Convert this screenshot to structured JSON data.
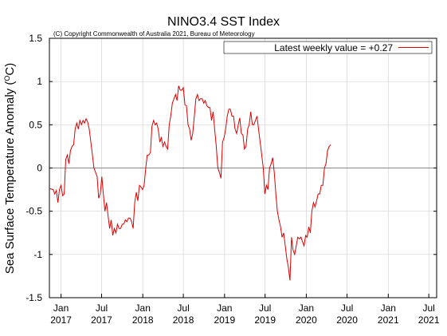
{
  "chart_data": {
    "type": "line",
    "title": "NINO3.4 SST Index",
    "subtitle": "(C) Copyright Commonwealth of Australia 2021, Bureau of Meteorology",
    "xlabel": "",
    "ylabel": "Sea Surface Temperature Anomaly (",
    "ylabel_unit": "O",
    "ylabel_tail": "C)",
    "ylim": [
      -1.5,
      1.5
    ],
    "yticks": [
      -1.5,
      -1,
      -0.5,
      0,
      0.5,
      1,
      1.5
    ],
    "ytick_labels": [
      "-1.5",
      "-1",
      "-0.5",
      "0",
      "0.5",
      "1",
      "1.5"
    ],
    "xlim": [
      "2016-11-10",
      "2021-08-05"
    ],
    "xticks": [
      {
        "date": "2017-01-01",
        "month": "Jan",
        "year": "2017"
      },
      {
        "date": "2017-07-01",
        "month": "Jul",
        "year": "2017"
      },
      {
        "date": "2018-01-01",
        "month": "Jan",
        "year": "2018"
      },
      {
        "date": "2018-07-01",
        "month": "Jul",
        "year": "2018"
      },
      {
        "date": "2019-01-01",
        "month": "Jan",
        "year": "2019"
      },
      {
        "date": "2019-07-01",
        "month": "Jul",
        "year": "2019"
      },
      {
        "date": "2020-01-01",
        "month": "Jan",
        "year": "2020"
      },
      {
        "date": "2020-07-01",
        "month": "Jul",
        "year": "2020"
      },
      {
        "date": "2021-01-01",
        "month": "Jan",
        "year": "2021"
      },
      {
        "date": "2021-07-01",
        "month": "Jul",
        "year": "2021"
      }
    ],
    "grid": true,
    "legend_position": "top-right",
    "series": [
      {
        "name": "Latest weekly value = +0.27",
        "color": "#dd0000",
        "points": [
          [
            "2016-11-13",
            -0.24
          ],
          [
            "2016-11-27",
            -0.25
          ],
          [
            "2016-12-04",
            -0.3
          ],
          [
            "2016-12-11",
            -0.26
          ],
          [
            "2016-12-18",
            -0.4
          ],
          [
            "2016-12-25",
            -0.25
          ],
          [
            "2017-01-01",
            -0.2
          ],
          [
            "2017-01-08",
            -0.32
          ],
          [
            "2017-01-15",
            -0.3
          ],
          [
            "2017-01-22",
            0.1
          ],
          [
            "2017-01-29",
            0.15
          ],
          [
            "2017-02-05",
            0.05
          ],
          [
            "2017-02-12",
            0.2
          ],
          [
            "2017-02-19",
            0.25
          ],
          [
            "2017-02-26",
            0.27
          ],
          [
            "2017-03-05",
            0.45
          ],
          [
            "2017-03-12",
            0.52
          ],
          [
            "2017-03-19",
            0.45
          ],
          [
            "2017-03-26",
            0.55
          ],
          [
            "2017-04-02",
            0.5
          ],
          [
            "2017-04-09",
            0.55
          ],
          [
            "2017-04-16",
            0.52
          ],
          [
            "2017-04-23",
            0.57
          ],
          [
            "2017-04-30",
            0.53
          ],
          [
            "2017-05-07",
            0.45
          ],
          [
            "2017-05-14",
            0.3
          ],
          [
            "2017-05-21",
            0.15
          ],
          [
            "2017-05-28",
            0.0
          ],
          [
            "2017-06-04",
            -0.05
          ],
          [
            "2017-06-11",
            -0.1
          ],
          [
            "2017-06-18",
            -0.35
          ],
          [
            "2017-06-25",
            -0.3
          ],
          [
            "2017-07-02",
            -0.1
          ],
          [
            "2017-07-09",
            -0.3
          ],
          [
            "2017-07-16",
            -0.5
          ],
          [
            "2017-07-23",
            -0.4
          ],
          [
            "2017-07-30",
            -0.55
          ],
          [
            "2017-08-06",
            -0.7
          ],
          [
            "2017-08-13",
            -0.6
          ],
          [
            "2017-08-20",
            -0.78
          ],
          [
            "2017-08-27",
            -0.7
          ],
          [
            "2017-09-03",
            -0.75
          ],
          [
            "2017-09-10",
            -0.65
          ],
          [
            "2017-09-17",
            -0.7
          ],
          [
            "2017-09-24",
            -0.7
          ],
          [
            "2017-10-01",
            -0.65
          ],
          [
            "2017-10-08",
            -0.65
          ],
          [
            "2017-10-15",
            -0.6
          ],
          [
            "2017-10-22",
            -0.62
          ],
          [
            "2017-10-29",
            -0.58
          ],
          [
            "2017-11-05",
            -0.58
          ],
          [
            "2017-11-12",
            -0.62
          ],
          [
            "2017-11-19",
            -0.7
          ],
          [
            "2017-11-26",
            -0.4
          ],
          [
            "2017-12-03",
            -0.28
          ],
          [
            "2017-12-10",
            -0.38
          ],
          [
            "2017-12-17",
            -0.2
          ],
          [
            "2017-12-24",
            -0.22
          ],
          [
            "2017-12-31",
            -0.25
          ],
          [
            "2018-01-07",
            -0.2
          ],
          [
            "2018-01-14",
            0.0
          ],
          [
            "2018-01-21",
            0.15
          ],
          [
            "2018-01-28",
            0.15
          ],
          [
            "2018-02-04",
            0.18
          ],
          [
            "2018-02-11",
            0.48
          ],
          [
            "2018-02-18",
            0.55
          ],
          [
            "2018-02-25",
            0.5
          ],
          [
            "2018-03-04",
            0.52
          ],
          [
            "2018-03-11",
            0.45
          ],
          [
            "2018-03-18",
            0.3
          ],
          [
            "2018-03-25",
            0.35
          ],
          [
            "2018-04-01",
            0.25
          ],
          [
            "2018-04-08",
            0.3
          ],
          [
            "2018-04-15",
            0.25
          ],
          [
            "2018-04-22",
            0.22
          ],
          [
            "2018-04-29",
            0.5
          ],
          [
            "2018-05-06",
            0.6
          ],
          [
            "2018-05-13",
            0.75
          ],
          [
            "2018-05-20",
            0.8
          ],
          [
            "2018-05-27",
            0.85
          ],
          [
            "2018-06-03",
            0.78
          ],
          [
            "2018-06-10",
            0.95
          ],
          [
            "2018-06-17",
            0.9
          ],
          [
            "2018-06-24",
            0.9
          ],
          [
            "2018-07-01",
            0.93
          ],
          [
            "2018-07-08",
            0.73
          ],
          [
            "2018-07-15",
            0.72
          ],
          [
            "2018-07-22",
            0.5
          ],
          [
            "2018-07-29",
            0.45
          ],
          [
            "2018-08-05",
            0.32
          ],
          [
            "2018-08-12",
            0.4
          ],
          [
            "2018-08-19",
            0.6
          ],
          [
            "2018-08-26",
            0.8
          ],
          [
            "2018-09-02",
            0.85
          ],
          [
            "2018-09-09",
            0.78
          ],
          [
            "2018-09-16",
            0.8
          ],
          [
            "2018-09-23",
            0.8
          ],
          [
            "2018-09-30",
            0.75
          ],
          [
            "2018-10-07",
            0.78
          ],
          [
            "2018-10-14",
            0.72
          ],
          [
            "2018-10-21",
            0.7
          ],
          [
            "2018-10-28",
            0.7
          ],
          [
            "2018-11-04",
            0.55
          ],
          [
            "2018-11-11",
            0.65
          ],
          [
            "2018-11-18",
            0.45
          ],
          [
            "2018-11-25",
            0.25
          ],
          [
            "2018-12-02",
            0.0
          ],
          [
            "2018-12-09",
            -0.05
          ],
          [
            "2018-12-16",
            -0.12
          ],
          [
            "2018-12-23",
            0.3
          ],
          [
            "2018-12-30",
            0.35
          ],
          [
            "2019-01-06",
            0.45
          ],
          [
            "2019-01-13",
            0.6
          ],
          [
            "2019-01-20",
            0.68
          ],
          [
            "2019-01-27",
            0.68
          ],
          [
            "2019-02-03",
            0.6
          ],
          [
            "2019-02-10",
            0.6
          ],
          [
            "2019-02-17",
            0.45
          ],
          [
            "2019-02-24",
            0.4
          ],
          [
            "2019-03-03",
            0.5
          ],
          [
            "2019-03-10",
            0.58
          ],
          [
            "2019-03-17",
            0.4
          ],
          [
            "2019-03-24",
            0.38
          ],
          [
            "2019-03-31",
            0.22
          ],
          [
            "2019-04-07",
            0.25
          ],
          [
            "2019-04-14",
            0.45
          ],
          [
            "2019-04-21",
            0.5
          ],
          [
            "2019-04-28",
            0.65
          ],
          [
            "2019-05-05",
            0.5
          ],
          [
            "2019-05-12",
            0.5
          ],
          [
            "2019-05-19",
            0.55
          ],
          [
            "2019-05-26",
            0.6
          ],
          [
            "2019-06-02",
            0.45
          ],
          [
            "2019-06-09",
            0.3
          ],
          [
            "2019-06-16",
            0.15
          ],
          [
            "2019-06-23",
            0.0
          ],
          [
            "2019-06-30",
            -0.3
          ],
          [
            "2019-07-07",
            -0.2
          ],
          [
            "2019-07-14",
            -0.25
          ],
          [
            "2019-07-21",
            0.0
          ],
          [
            "2019-07-28",
            0.05
          ],
          [
            "2019-08-04",
            0.12
          ],
          [
            "2019-08-11",
            -0.05
          ],
          [
            "2019-08-18",
            -0.3
          ],
          [
            "2019-08-25",
            -0.5
          ],
          [
            "2019-09-01",
            -0.6
          ],
          [
            "2019-09-08",
            -0.68
          ],
          [
            "2019-09-15",
            -0.8
          ],
          [
            "2019-09-22",
            -0.75
          ],
          [
            "2019-09-29",
            -0.9
          ],
          [
            "2019-10-06",
            -1.05
          ],
          [
            "2019-10-13",
            -1.15
          ],
          [
            "2019-10-20",
            -1.3
          ],
          [
            "2019-10-27",
            -0.8
          ],
          [
            "2019-11-03",
            -0.95
          ],
          [
            "2019-11-10",
            -1.0
          ],
          [
            "2019-11-17",
            -0.9
          ],
          [
            "2019-11-24",
            -0.8
          ],
          [
            "2019-12-01",
            -0.82
          ],
          [
            "2019-12-08",
            -0.8
          ],
          [
            "2019-12-15",
            -0.85
          ],
          [
            "2019-12-22",
            -0.9
          ],
          [
            "2019-12-29",
            -0.78
          ],
          [
            "2020-01-05",
            -0.8
          ],
          [
            "2020-01-12",
            -0.68
          ],
          [
            "2020-01-19",
            -0.75
          ],
          [
            "2020-01-26",
            -0.5
          ],
          [
            "2020-02-02",
            -0.4
          ],
          [
            "2020-02-09",
            -0.45
          ],
          [
            "2020-02-16",
            -0.38
          ],
          [
            "2020-02-23",
            -0.3
          ],
          [
            "2020-03-01",
            -0.3
          ],
          [
            "2020-03-08",
            -0.2
          ],
          [
            "2020-03-15",
            -0.2
          ],
          [
            "2020-03-22",
            0.0
          ],
          [
            "2020-03-29",
            0.05
          ],
          [
            "2020-04-05",
            0.2
          ],
          [
            "2020-04-12",
            0.25
          ],
          [
            "2020-04-19",
            0.27
          ]
        ]
      }
    ]
  }
}
